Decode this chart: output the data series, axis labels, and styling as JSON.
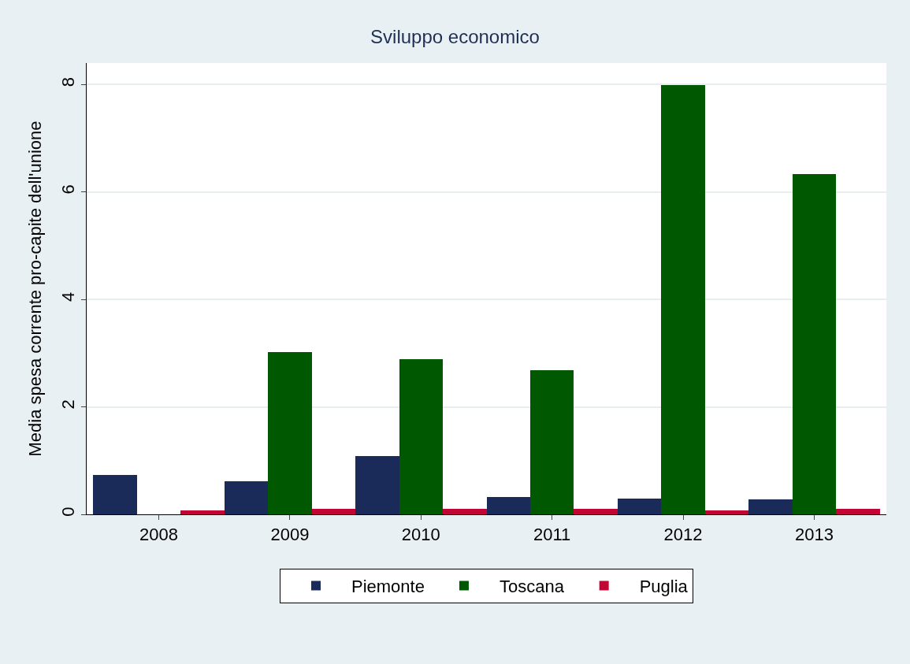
{
  "chart_data": {
    "type": "bar",
    "title": "Sviluppo economico",
    "ylabel": "Media spesa corrente pro-capite dell'unione",
    "categories": [
      "2008",
      "2009",
      "2010",
      "2011",
      "2012",
      "2013"
    ],
    "series": [
      {
        "name": "Piemonte",
        "color": "#1a2b5a",
        "values": [
          0.73,
          0.61,
          1.09,
          0.32,
          0.29,
          0.28
        ]
      },
      {
        "name": "Toscana",
        "color": "#005800",
        "values": [
          null,
          3.02,
          2.89,
          2.69,
          7.99,
          6.34
        ]
      },
      {
        "name": "Puglia",
        "color": "#c10534",
        "values": [
          0.07,
          0.1,
          0.1,
          0.1,
          0.07,
          0.1
        ]
      }
    ],
    "ylim": [
      0,
      8.4
    ],
    "yticks": [
      0,
      2,
      4,
      6,
      8
    ],
    "grid": "y",
    "legend": "bottom"
  }
}
